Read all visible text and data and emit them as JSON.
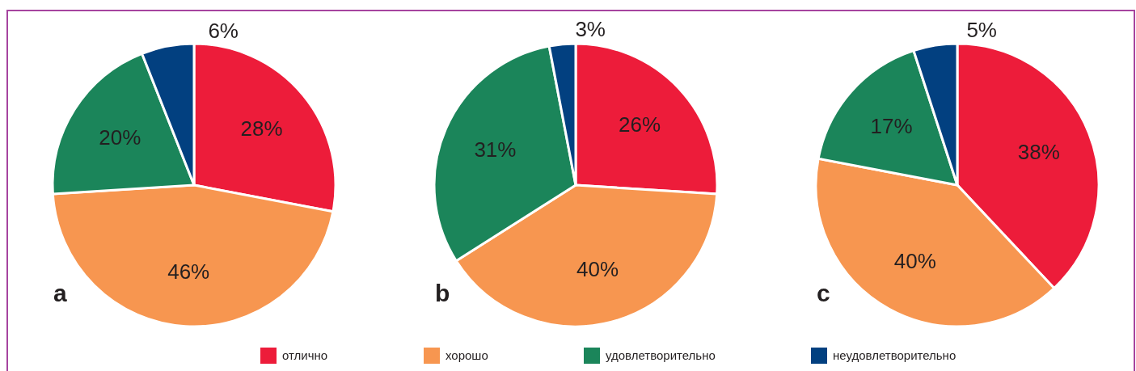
{
  "chart_data": [
    {
      "type": "pie",
      "title": "a",
      "categories": [
        "отлично",
        "хорошо",
        "удовлетворительно",
        "неудовлетворительно"
      ],
      "values": [
        28,
        46,
        20,
        6
      ],
      "colors": [
        "#ed1c3a",
        "#f79650",
        "#1b855a",
        "#024080"
      ],
      "value_labels": [
        "28%",
        "46%",
        "20%",
        "6%"
      ],
      "legend": "bottom"
    },
    {
      "type": "pie",
      "title": "b",
      "categories": [
        null,
        null,
        null,
        null
      ],
      "values": [
        26,
        40,
        31,
        3
      ],
      "colors": [
        "#ed1c3a",
        "#f79650",
        "#1b855a",
        "#024080"
      ],
      "value_labels": [
        "26%",
        "40%",
        "31%",
        "3%"
      ]
    },
    {
      "type": "pie",
      "title": "c",
      "categories": [
        null,
        null,
        null,
        null
      ],
      "values": [
        38,
        40,
        17,
        5
      ],
      "colors": [
        "#ed1c3a",
        "#f79650",
        "#1b855a",
        "#024080"
      ],
      "value_labels": [
        "38%",
        "40%",
        "17%",
        "5%"
      ]
    }
  ]
}
